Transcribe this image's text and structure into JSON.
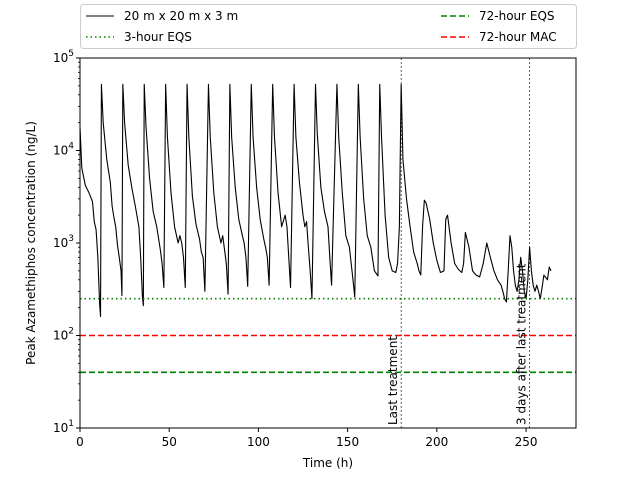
{
  "chart_data": {
    "type": "line",
    "xlabel": "Time (h)",
    "ylabel": "Peak Azamethiphos concentration (ng/L)",
    "xlim": [
      0,
      278
    ],
    "ylim": [
      10,
      100000
    ],
    "yscale": "log",
    "grid": false,
    "legend_position": "top",
    "x_ticks": [
      {
        "value": 0,
        "label": "0"
      },
      {
        "value": 50,
        "label": "50"
      },
      {
        "value": 100,
        "label": "100"
      },
      {
        "value": 150,
        "label": "150"
      },
      {
        "value": 200,
        "label": "200"
      },
      {
        "value": 250,
        "label": "250"
      }
    ],
    "y_ticks": [
      {
        "value": 10,
        "base": "10",
        "exp": "1"
      },
      {
        "value": 100,
        "base": "10",
        "exp": "2"
      },
      {
        "value": 1000,
        "base": "10",
        "exp": "3"
      },
      {
        "value": 10000,
        "base": "10",
        "exp": "4"
      },
      {
        "value": 100000,
        "base": "10",
        "exp": "5"
      }
    ],
    "series": [
      {
        "name": "20 m x 20 m x 3 m",
        "color": "#000000",
        "style": "solid",
        "points": [
          [
            0,
            18000
          ],
          [
            1,
            6500
          ],
          [
            3,
            4200
          ],
          [
            5,
            3500
          ],
          [
            7,
            2800
          ],
          [
            8,
            1700
          ],
          [
            9,
            1400
          ],
          [
            10,
            700
          ],
          [
            11,
            220
          ],
          [
            11.5,
            160
          ],
          [
            12,
            52000
          ],
          [
            13,
            20000
          ],
          [
            15,
            8000
          ],
          [
            17,
            4500
          ],
          [
            18,
            2500
          ],
          [
            19,
            1900
          ],
          [
            20,
            1500
          ],
          [
            21,
            950
          ],
          [
            22,
            700
          ],
          [
            23,
            500
          ],
          [
            23.5,
            270
          ],
          [
            24,
            52000
          ],
          [
            25,
            20000
          ],
          [
            27,
            7000
          ],
          [
            29,
            4000
          ],
          [
            31,
            2500
          ],
          [
            33,
            1500
          ],
          [
            34,
            700
          ],
          [
            35,
            260
          ],
          [
            35.5,
            210
          ],
          [
            36,
            52000
          ],
          [
            37,
            18000
          ],
          [
            39,
            5000
          ],
          [
            41,
            2200
          ],
          [
            43,
            1500
          ],
          [
            45,
            850
          ],
          [
            46,
            600
          ],
          [
            47,
            330
          ],
          [
            48,
            52000
          ],
          [
            49,
            14000
          ],
          [
            51,
            3500
          ],
          [
            53,
            1500
          ],
          [
            55,
            1000
          ],
          [
            56,
            1200
          ],
          [
            57,
            1000
          ],
          [
            58,
            700
          ],
          [
            59,
            330
          ],
          [
            60,
            52000
          ],
          [
            61,
            14000
          ],
          [
            63,
            3200
          ],
          [
            65,
            1600
          ],
          [
            67,
            1100
          ],
          [
            68,
            800
          ],
          [
            69,
            700
          ],
          [
            70,
            300
          ],
          [
            72,
            52000
          ],
          [
            73,
            14000
          ],
          [
            75,
            3500
          ],
          [
            77,
            1500
          ],
          [
            79,
            1000
          ],
          [
            80,
            1200
          ],
          [
            81,
            850
          ],
          [
            82,
            600
          ],
          [
            83,
            280
          ],
          [
            84,
            52000
          ],
          [
            85,
            14000
          ],
          [
            87,
            4000
          ],
          [
            89,
            1800
          ],
          [
            91,
            1200
          ],
          [
            92,
            1000
          ],
          [
            93,
            700
          ],
          [
            94,
            340
          ],
          [
            96,
            52000
          ],
          [
            97,
            14000
          ],
          [
            99,
            4000
          ],
          [
            101,
            1800
          ],
          [
            103,
            1100
          ],
          [
            104,
            900
          ],
          [
            105,
            700
          ],
          [
            106,
            350
          ],
          [
            108,
            52000
          ],
          [
            109,
            14000
          ],
          [
            111,
            3500
          ],
          [
            113,
            1500
          ],
          [
            115,
            2000
          ],
          [
            116,
            1500
          ],
          [
            117,
            700
          ],
          [
            118,
            330
          ],
          [
            120,
            52000
          ],
          [
            121,
            14000
          ],
          [
            123,
            4500
          ],
          [
            125,
            2000
          ],
          [
            126,
            1500
          ],
          [
            127,
            1700
          ],
          [
            128,
            900
          ],
          [
            129,
            500
          ],
          [
            130,
            250
          ],
          [
            132,
            52000
          ],
          [
            133,
            15000
          ],
          [
            135,
            4000
          ],
          [
            137,
            2200
          ],
          [
            139,
            1500
          ],
          [
            140,
            700
          ],
          [
            141,
            350
          ],
          [
            144,
            52000
          ],
          [
            145,
            14000
          ],
          [
            147,
            3500
          ],
          [
            149,
            1200
          ],
          [
            151,
            900
          ],
          [
            152,
            600
          ],
          [
            153,
            400
          ],
          [
            154,
            260
          ],
          [
            156,
            52000
          ],
          [
            157,
            14000
          ],
          [
            159,
            3000
          ],
          [
            161,
            1200
          ],
          [
            163,
            900
          ],
          [
            165,
            500
          ],
          [
            167,
            440
          ],
          [
            168,
            52000
          ],
          [
            169,
            14000
          ],
          [
            171,
            2000
          ],
          [
            173,
            700
          ],
          [
            175,
            500
          ],
          [
            177,
            480
          ],
          [
            178,
            600
          ],
          [
            179,
            1500
          ],
          [
            180,
            52000
          ],
          [
            181,
            8000
          ],
          [
            183,
            3000
          ],
          [
            185,
            1500
          ],
          [
            187,
            800
          ],
          [
            189,
            600
          ],
          [
            190,
            500
          ],
          [
            191,
            450
          ],
          [
            192,
            1500
          ],
          [
            193,
            2900
          ],
          [
            194,
            2700
          ],
          [
            196,
            1800
          ],
          [
            198,
            1000
          ],
          [
            200,
            650
          ],
          [
            202,
            480
          ],
          [
            204,
            500
          ],
          [
            205,
            1800
          ],
          [
            206,
            2000
          ],
          [
            208,
            1000
          ],
          [
            210,
            600
          ],
          [
            212,
            520
          ],
          [
            214,
            480
          ],
          [
            215,
            600
          ],
          [
            216,
            1300
          ],
          [
            218,
            900
          ],
          [
            220,
            500
          ],
          [
            222,
            450
          ],
          [
            224,
            430
          ],
          [
            226,
            600
          ],
          [
            228,
            1000
          ],
          [
            230,
            700
          ],
          [
            232,
            500
          ],
          [
            234,
            400
          ],
          [
            236,
            350
          ],
          [
            237,
            300
          ],
          [
            238,
            250
          ],
          [
            239,
            230
          ],
          [
            240,
            500
          ],
          [
            241,
            1200
          ],
          [
            242,
            900
          ],
          [
            243,
            500
          ],
          [
            244,
            350
          ],
          [
            245,
            300
          ],
          [
            246,
            400
          ],
          [
            247,
            700
          ],
          [
            248,
            500
          ],
          [
            249,
            300
          ],
          [
            250,
            250
          ],
          [
            251,
            400
          ],
          [
            252,
            900
          ],
          [
            253,
            500
          ],
          [
            254,
            350
          ],
          [
            255,
            300
          ],
          [
            256,
            350
          ],
          [
            257,
            300
          ],
          [
            258,
            250
          ],
          [
            259,
            330
          ],
          [
            260,
            450
          ],
          [
            262,
            400
          ],
          [
            263,
            550
          ],
          [
            264,
            500
          ]
        ]
      },
      {
        "name": "3-hour EQS",
        "color": "#008000",
        "style": "dotted",
        "constant": 250
      },
      {
        "name": "72-hour EQS",
        "color": "#008000",
        "style": "dashed",
        "constant": 40
      },
      {
        "name": "72-hour MAC",
        "color": "#ff0000",
        "style": "dashed",
        "constant": 100
      }
    ],
    "annotations": [
      {
        "x": 180,
        "text": "Last treatment"
      },
      {
        "x": 252,
        "text": "3 days after last treatment"
      }
    ]
  }
}
